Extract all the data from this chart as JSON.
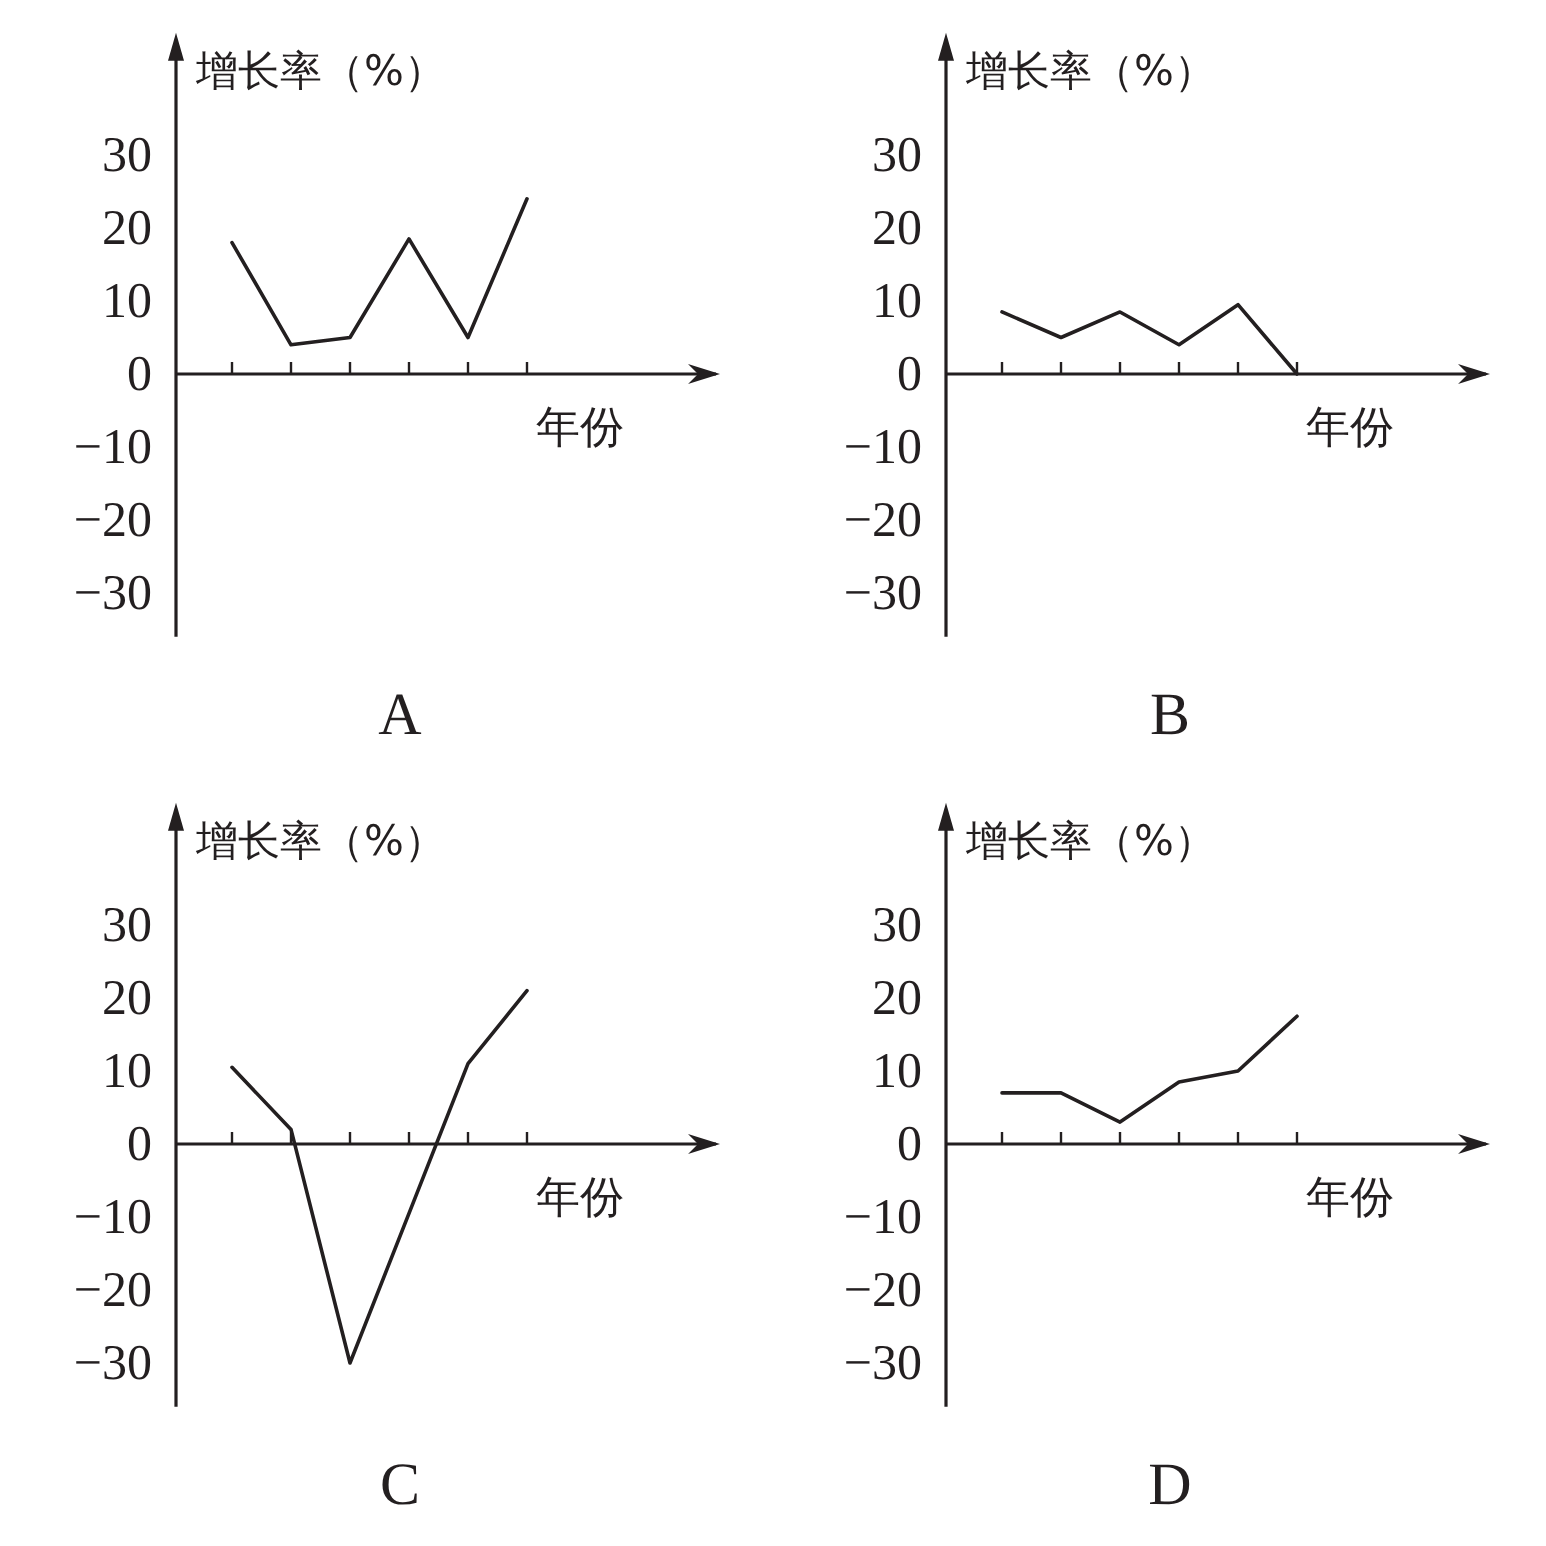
{
  "chart_data": [
    {
      "type": "line",
      "title": "A",
      "xlabel": "年份",
      "ylabel": "增长率（%）",
      "categories": [
        null,
        null,
        null,
        null,
        null,
        null
      ],
      "values": [
        18,
        4,
        5,
        18.5,
        5,
        24
      ],
      "color": "#231f20",
      "ylim": [
        -36,
        44
      ],
      "yticks": [
        -30,
        -20,
        -10,
        0,
        10,
        20,
        30
      ],
      "tick_labels": "y"
    },
    {
      "type": "line",
      "title": "B",
      "xlabel": "年份",
      "ylabel": "增长率（%）",
      "categories": [
        null,
        null,
        null,
        null,
        null,
        null
      ],
      "values": [
        8.5,
        5,
        8.5,
        4,
        9.5,
        0
      ],
      "color": "#231f20",
      "ylim": [
        -36,
        44
      ],
      "yticks": [
        -30,
        -20,
        -10,
        0,
        10,
        20,
        30
      ],
      "tick_labels": "y"
    },
    {
      "type": "line",
      "title": "C",
      "xlabel": "年份",
      "ylabel": "增长率（%）",
      "categories": [
        null,
        null,
        null,
        null,
        null,
        null
      ],
      "values": [
        10.5,
        2,
        -30,
        -9.5,
        11,
        21
      ],
      "color": "#231f20",
      "ylim": [
        -36,
        44
      ],
      "yticks": [
        -30,
        -20,
        -10,
        0,
        10,
        20,
        30
      ],
      "tick_labels": "y"
    },
    {
      "type": "line",
      "title": "D",
      "xlabel": "年份",
      "ylabel": "增长率（%）",
      "categories": [
        null,
        null,
        null,
        null,
        null,
        null
      ],
      "values": [
        7,
        7,
        3,
        8.5,
        10,
        17.5
      ],
      "color": "#231f20",
      "ylim": [
        -36,
        44
      ],
      "yticks": [
        -30,
        -20,
        -10,
        0,
        10,
        20,
        30
      ],
      "tick_labels": "y"
    }
  ]
}
